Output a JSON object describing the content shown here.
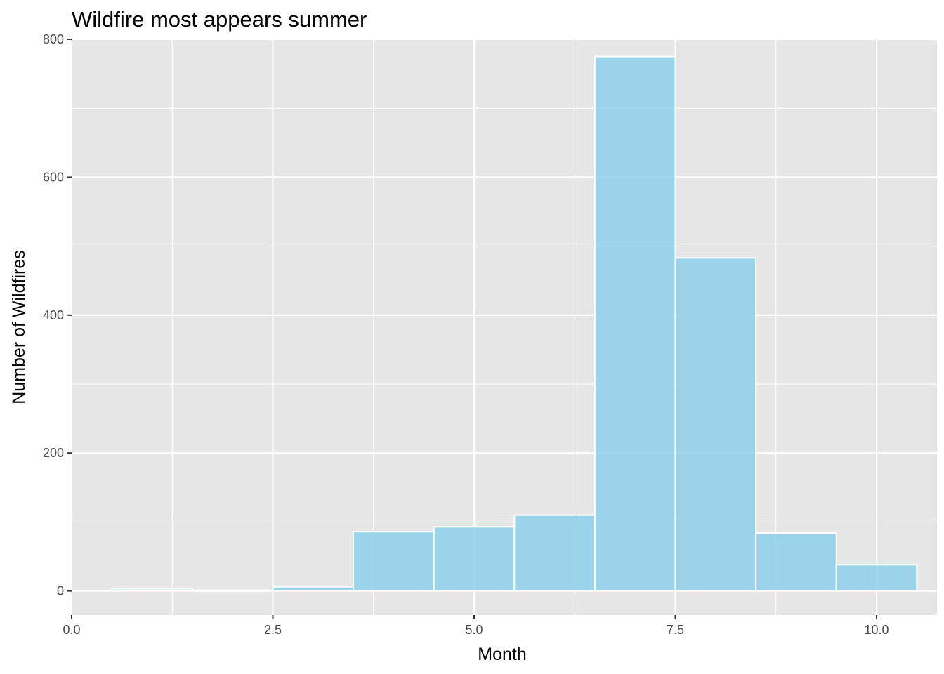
{
  "chart_data": {
    "type": "bar",
    "subtype": "histogram",
    "title": "Wildfire most appears summer",
    "xlabel": "Month",
    "ylabel": "Number of Wildfires",
    "xlim": [
      0,
      10.75
    ],
    "ylim": [
      -35,
      800
    ],
    "x_ticks": [
      0,
      2.5,
      5,
      7.5,
      10
    ],
    "x_tick_labels": [
      "0.0",
      "2.5",
      "5.0",
      "7.5",
      "10.0"
    ],
    "y_ticks": [
      0,
      200,
      400,
      600,
      800
    ],
    "y_tick_labels": [
      "0",
      "200",
      "400",
      "600",
      "800"
    ],
    "bin_width": 1,
    "bins": [
      {
        "center": 1,
        "value": 3
      },
      {
        "center": 2,
        "value": 1
      },
      {
        "center": 3,
        "value": 6
      },
      {
        "center": 4,
        "value": 86
      },
      {
        "center": 5,
        "value": 93
      },
      {
        "center": 6,
        "value": 110
      },
      {
        "center": 7,
        "value": 775
      },
      {
        "center": 8,
        "value": 483
      },
      {
        "center": 9,
        "value": 84
      },
      {
        "center": 10,
        "value": 38
      }
    ],
    "grid": true,
    "colors": {
      "bar_fill": "#87ceeb",
      "bar_outline": "#ffffff",
      "panel_background": "#e6e6e6",
      "grid": "#ffffff"
    }
  }
}
